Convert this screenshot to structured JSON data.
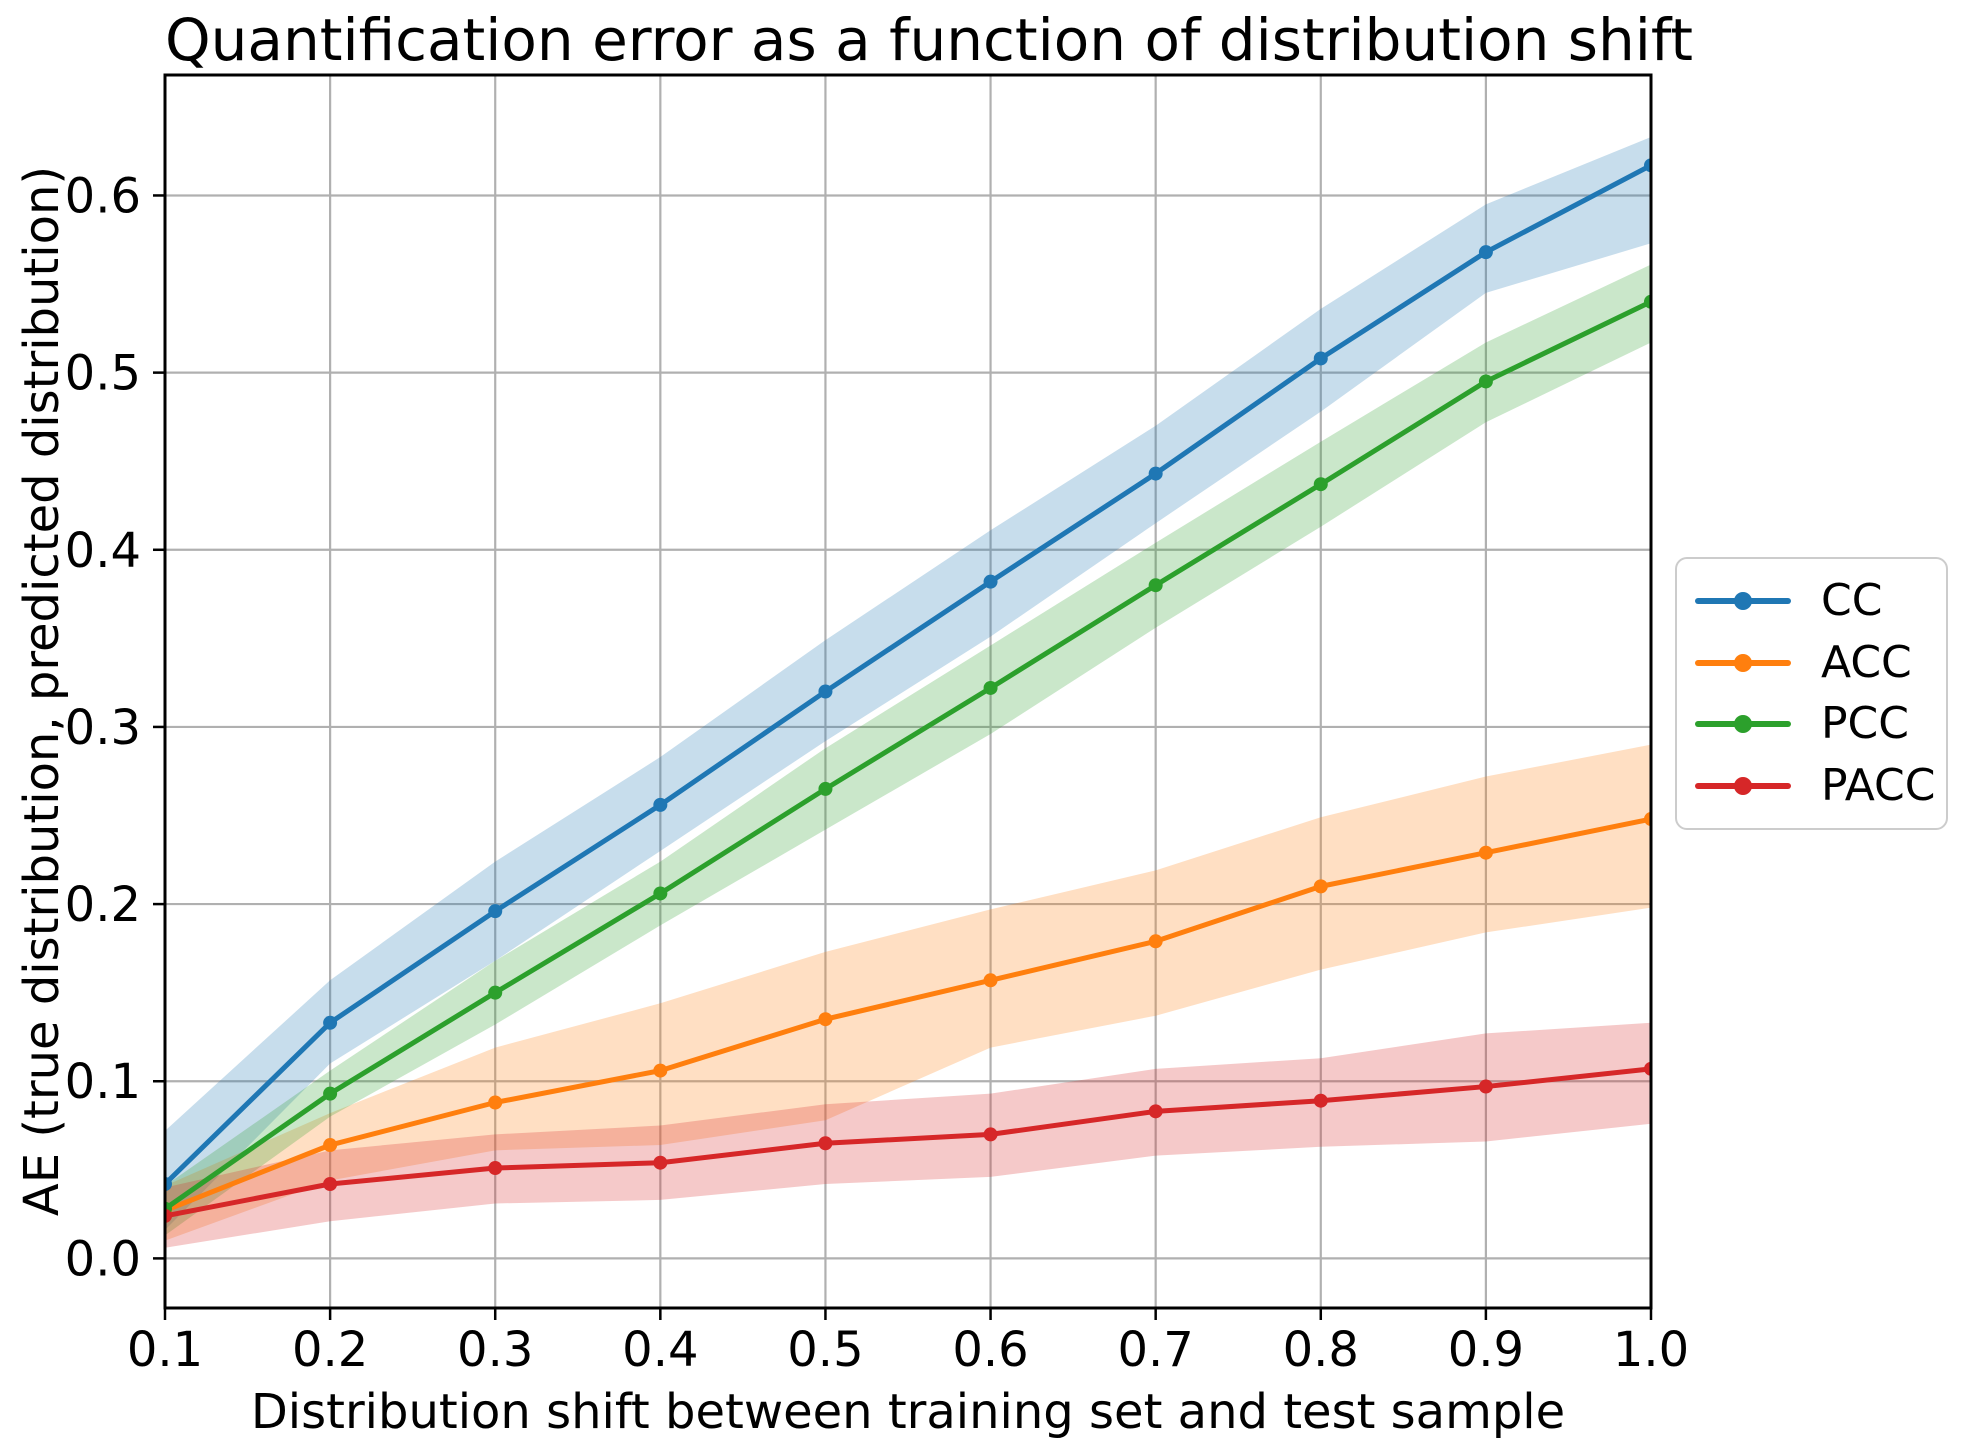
{
  "chart_data": {
    "type": "line",
    "title": "Quantification error as a function of distribution shift",
    "xlabel": "Distribution shift between training set and test sample",
    "ylabel": "AE (true distribution, predicted distribution)",
    "x": [
      0.1,
      0.2,
      0.3,
      0.4,
      0.5,
      0.6,
      0.7,
      0.8,
      0.9,
      1.0
    ],
    "xticks": [
      "0.1",
      "0.2",
      "0.3",
      "0.4",
      "0.5",
      "0.6",
      "0.7",
      "0.8",
      "0.9",
      "1.0"
    ],
    "yticks": [
      "0.0",
      "0.1",
      "0.2",
      "0.3",
      "0.4",
      "0.5",
      "0.6"
    ],
    "xlim": [
      0.1,
      1.0
    ],
    "ylim": [
      -0.028,
      0.668
    ],
    "grid": true,
    "grid_color": "#b0b0b0",
    "spine_color": "#000000",
    "background": "#ffffff",
    "legend_position": "right-outside",
    "legend_border_color": "#cccccc",
    "band_alpha": 0.25,
    "series": [
      {
        "name": "CC",
        "color": "#1f77b4",
        "values": [
          0.042,
          0.133,
          0.196,
          0.256,
          0.32,
          0.382,
          0.443,
          0.508,
          0.568,
          0.617
        ],
        "band_lower": [
          0.016,
          0.11,
          0.168,
          0.23,
          0.292,
          0.351,
          0.415,
          0.478,
          0.545,
          0.573
        ],
        "band_upper": [
          0.072,
          0.157,
          0.224,
          0.283,
          0.349,
          0.411,
          0.47,
          0.536,
          0.595,
          0.633
        ]
      },
      {
        "name": "ACC",
        "color": "#ff7f0e",
        "values": [
          0.027,
          0.064,
          0.088,
          0.106,
          0.135,
          0.157,
          0.179,
          0.21,
          0.229,
          0.248
        ],
        "band_lower": [
          0.01,
          0.044,
          0.061,
          0.064,
          0.078,
          0.119,
          0.137,
          0.163,
          0.184,
          0.198
        ],
        "band_upper": [
          0.041,
          0.082,
          0.119,
          0.144,
          0.173,
          0.197,
          0.219,
          0.249,
          0.272,
          0.29
        ]
      },
      {
        "name": "PCC",
        "color": "#2ca02c",
        "values": [
          0.028,
          0.093,
          0.15,
          0.206,
          0.265,
          0.322,
          0.38,
          0.437,
          0.495,
          0.54
        ],
        "band_lower": [
          0.013,
          0.08,
          0.132,
          0.188,
          0.242,
          0.296,
          0.356,
          0.413,
          0.472,
          0.517
        ],
        "band_upper": [
          0.041,
          0.106,
          0.168,
          0.224,
          0.288,
          0.346,
          0.404,
          0.461,
          0.517,
          0.561
        ]
      },
      {
        "name": "PACC",
        "color": "#d62728",
        "values": [
          0.024,
          0.042,
          0.051,
          0.054,
          0.065,
          0.07,
          0.083,
          0.089,
          0.097,
          0.107
        ],
        "band_lower": [
          0.006,
          0.021,
          0.031,
          0.033,
          0.042,
          0.046,
          0.058,
          0.063,
          0.066,
          0.076
        ],
        "band_upper": [
          0.04,
          0.061,
          0.07,
          0.075,
          0.087,
          0.093,
          0.107,
          0.113,
          0.127,
          0.133
        ]
      }
    ]
  }
}
